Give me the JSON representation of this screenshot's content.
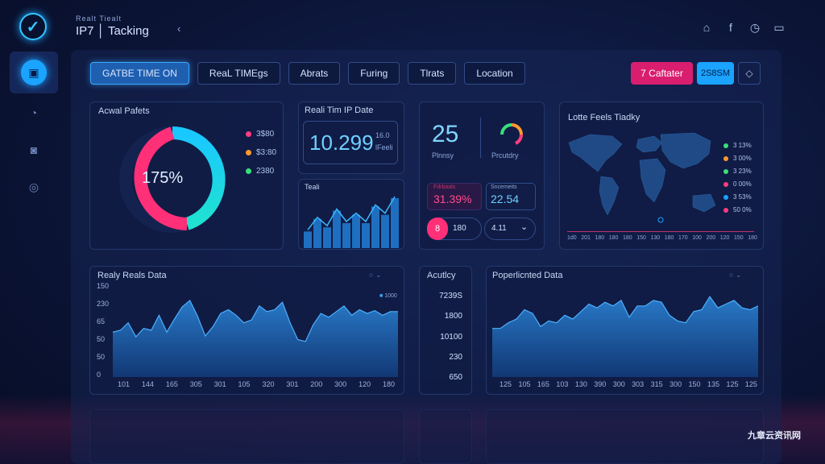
{
  "brand": {
    "subtitle": "Realt Tiealt",
    "title": "IP7 │ Tacking",
    "back": "‹"
  },
  "top_icons": [
    "home-icon",
    "facebook-icon",
    "clock-icon",
    "message-icon"
  ],
  "top_icon_glyphs": [
    "⌂",
    "f",
    "◷",
    "▭"
  ],
  "sidebar": {
    "items": [
      {
        "name": "dashboard",
        "glyph": "▣"
      },
      {
        "name": "alarm",
        "glyph": "◔"
      },
      {
        "name": "camera",
        "glyph": "◙"
      },
      {
        "name": "globe",
        "glyph": "◎"
      }
    ]
  },
  "tabs": [
    "GATBE TIME ON",
    "ReaL TIMEgs",
    "Abrats",
    "Furing",
    "Tlrats",
    "Location"
  ],
  "actions": {
    "primary": "7 Caftater",
    "secondary": "2S8SM",
    "tertiary": "◇"
  },
  "donut": {
    "title": "Acwal Pafets",
    "center": "175%",
    "legend": [
      {
        "label": "3$80",
        "color": "#ff3d7f"
      },
      {
        "label": "$3:80",
        "color": "#ff9a2e"
      },
      {
        "label": "2380",
        "color": "#39e07a"
      }
    ]
  },
  "realtime": {
    "title": "Reali Tim IP Date",
    "value": "10.299",
    "sub1": "16.0",
    "sub2": "lFeeli"
  },
  "teal_bars": {
    "title": "Teali",
    "values": [
      4,
      7,
      5,
      9,
      6,
      8,
      6,
      10,
      8,
      12
    ]
  },
  "kpi": {
    "value1": "25",
    "label1": "Plnnsy",
    "label2": "Prcutdry",
    "pct1": "31.39%",
    "pct1_sub": "Fdrbaals",
    "pct2": "22.54",
    "pct2_sub": "Sncemeits",
    "pill1_badge": "8",
    "pill1_val": "180",
    "pill2_val": "4.11",
    "pill2_icon": "⌄"
  },
  "map": {
    "title": "Lotte Feels Tiadky",
    "legend": [
      {
        "label": "3 13%",
        "color": "#39e07a"
      },
      {
        "label": "3 00%",
        "color": "#ff9a2e"
      },
      {
        "label": "3 23%",
        "color": "#39e07a"
      },
      {
        "label": "0 00%",
        "color": "#ff3d7f"
      },
      {
        "label": "3 53%",
        "color": "#1aa3ff"
      },
      {
        "label": "50 0%",
        "color": "#ff3d7f"
      }
    ],
    "axis": [
      "1d0",
      "201",
      "180",
      "180",
      "180",
      "150",
      "130",
      "180",
      "170",
      "100",
      "200",
      "120",
      "150",
      "180"
    ]
  },
  "area1": {
    "title": "Realy Reals Data",
    "control": "⌄",
    "y_labels": [
      "150",
      "230",
      "65",
      "50",
      "50",
      "0"
    ],
    "x_labels": [
      "101",
      "144",
      "165",
      "305",
      "301",
      "105",
      "320",
      "301",
      "200",
      "300",
      "120",
      "180"
    ],
    "legend": "1000",
    "values": [
      48,
      50,
      58,
      43,
      52,
      50,
      66,
      48,
      62,
      75,
      82,
      65,
      44,
      54,
      68,
      72,
      66,
      58,
      61,
      76,
      70,
      72,
      80,
      58,
      40,
      38,
      56,
      68,
      64,
      70,
      76,
      66,
      72,
      68,
      71,
      66,
      70,
      70
    ]
  },
  "accuracy": {
    "title": "Acutlcy",
    "values": [
      "7239S",
      "1800",
      "10100",
      "230",
      "650"
    ]
  },
  "area2": {
    "title": "Poperlicnted Data",
    "control": "⌄",
    "x_labels": [
      "125",
      "105",
      "165",
      "103",
      "130",
      "390",
      "300",
      "303",
      "315",
      "300",
      "150",
      "135",
      "125",
      "125"
    ],
    "values": [
      52,
      52,
      58,
      62,
      72,
      68,
      54,
      60,
      58,
      66,
      62,
      70,
      78,
      74,
      80,
      76,
      82,
      64,
      76,
      76,
      82,
      80,
      66,
      60,
      58,
      70,
      72,
      86,
      74,
      78,
      82,
      74,
      72,
      76
    ]
  }
}
